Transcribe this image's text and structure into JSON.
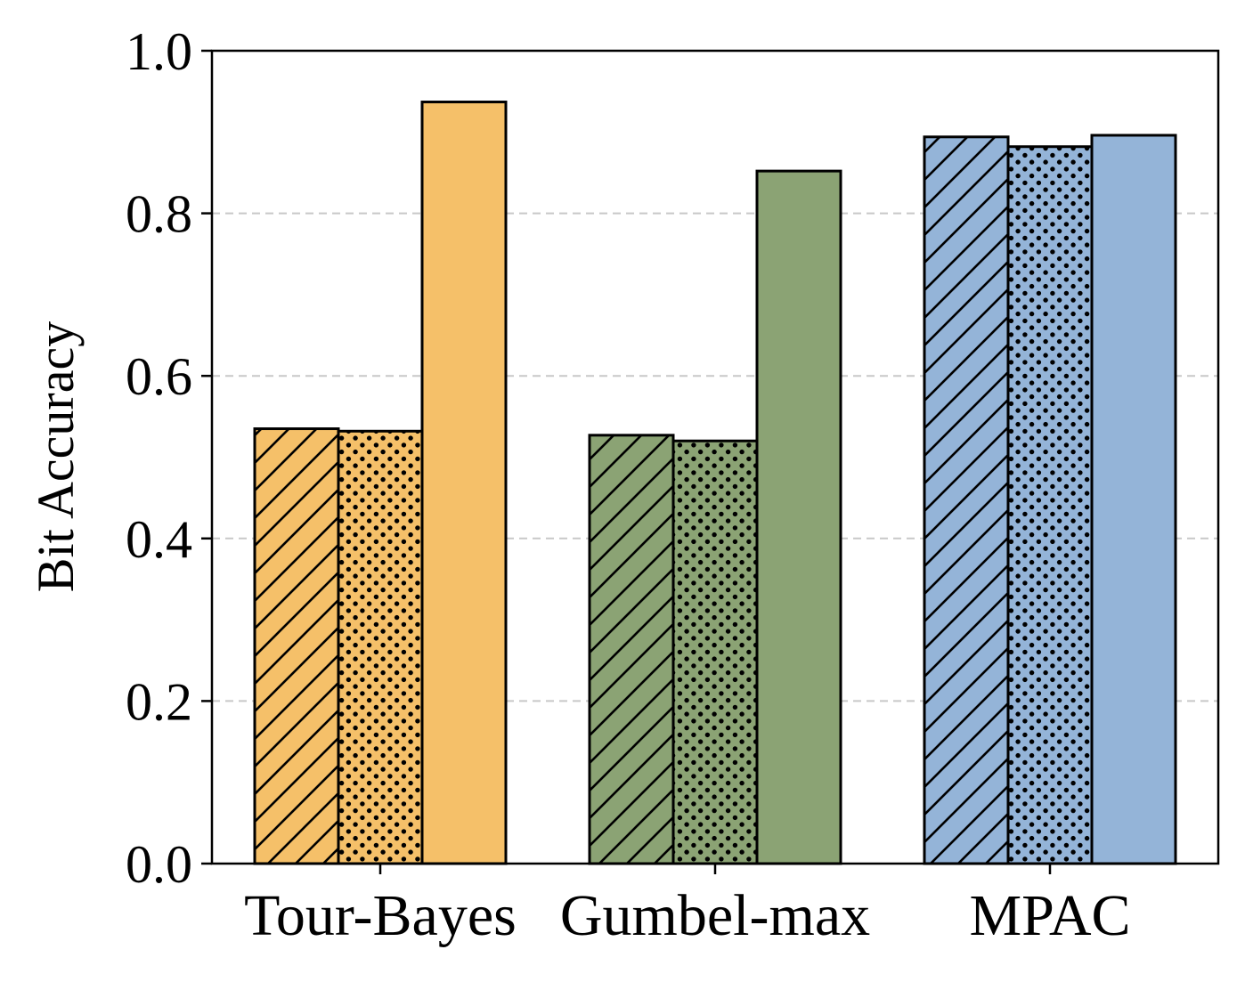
{
  "chart_data": {
    "type": "bar",
    "title": "",
    "xlabel": "",
    "ylabel": "Bit Accuracy",
    "ylim": [
      0.0,
      1.0
    ],
    "yticks": [
      "0.0",
      "0.2",
      "0.4",
      "0.6",
      "0.8",
      "1.0"
    ],
    "grid": "horizontal dashed",
    "legend": "none",
    "categories": [
      "Tour-Bayes",
      "Gumbel-max",
      "MPAC"
    ],
    "category_colors": [
      "#f5c069",
      "#8ba374",
      "#94b4d8"
    ],
    "bar_patterns": [
      "diagonal-hatch",
      "dots",
      "solid"
    ],
    "series": [
      {
        "pattern": "diagonal-hatch",
        "values": [
          0.535,
          0.527,
          0.894
        ]
      },
      {
        "pattern": "dots",
        "values": [
          0.532,
          0.52,
          0.882
        ]
      },
      {
        "pattern": "solid",
        "values": [
          0.937,
          0.852,
          0.896
        ]
      }
    ]
  }
}
